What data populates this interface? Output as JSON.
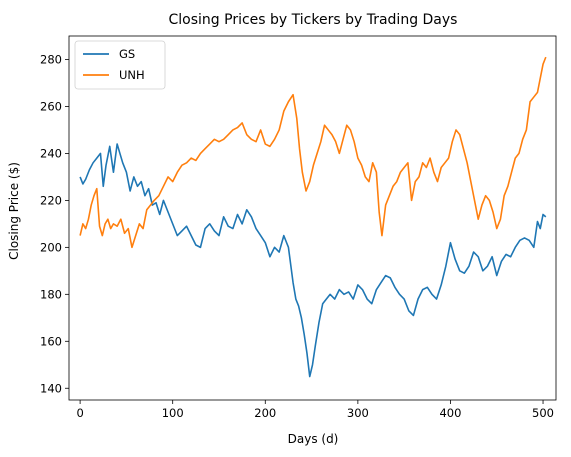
{
  "chart_data": {
    "type": "line",
    "title": "Closing Prices by Tickers by Trading Days",
    "xlabel": "Days (d)",
    "ylabel": "Closing Price ($)",
    "xlim": [
      -12,
      514
    ],
    "ylim": [
      135,
      290
    ],
    "xticks": [
      0,
      100,
      200,
      300,
      400,
      500
    ],
    "yticks": [
      140,
      160,
      180,
      200,
      220,
      240,
      260,
      280
    ],
    "xtick_labels": [
      "0",
      "100",
      "200",
      "300",
      "400",
      "500"
    ],
    "ytick_labels": [
      "140",
      "160",
      "180",
      "200",
      "220",
      "240",
      "260",
      "280"
    ],
    "grid": false,
    "legend": {
      "placement": "top-left"
    },
    "colors": {
      "GS": "#1f77b4",
      "UNH": "#ff7f0e"
    },
    "series": [
      {
        "name": "GS",
        "color": "#1f77b4",
        "x": [
          0,
          3,
          6,
          10,
          14,
          18,
          22,
          25,
          28,
          32,
          36,
          40,
          43,
          46,
          50,
          54,
          58,
          62,
          66,
          70,
          74,
          78,
          82,
          86,
          90,
          95,
          100,
          105,
          110,
          115,
          120,
          125,
          130,
          135,
          140,
          145,
          150,
          155,
          160,
          165,
          170,
          175,
          180,
          185,
          190,
          195,
          200,
          205,
          210,
          215,
          220,
          225,
          230,
          233,
          236,
          239,
          242,
          245,
          248,
          251,
          254,
          258,
          262,
          266,
          270,
          275,
          280,
          285,
          290,
          295,
          300,
          305,
          310,
          315,
          320,
          325,
          330,
          335,
          340,
          345,
          350,
          355,
          360,
          365,
          370,
          375,
          380,
          385,
          390,
          395,
          400,
          405,
          410,
          415,
          420,
          425,
          430,
          435,
          440,
          445,
          450,
          455,
          460,
          465,
          470,
          475,
          480,
          485,
          490,
          494,
          497,
          500,
          503
        ],
        "y": [
          230,
          227,
          229,
          233,
          236,
          238,
          240,
          226,
          235,
          243,
          232,
          244,
          240,
          236,
          232,
          224,
          230,
          226,
          228,
          222,
          225,
          218,
          219,
          214,
          220,
          215,
          210,
          205,
          207,
          209,
          205,
          201,
          200,
          208,
          210,
          207,
          205,
          213,
          209,
          208,
          214,
          210,
          216,
          213,
          208,
          205,
          202,
          196,
          200,
          198,
          205,
          200,
          185,
          178,
          175,
          170,
          163,
          155,
          145,
          150,
          158,
          168,
          176,
          178,
          180,
          178,
          182,
          180,
          181,
          178,
          184,
          182,
          178,
          176,
          182,
          185,
          188,
          187,
          183,
          180,
          178,
          173,
          171,
          178,
          182,
          183,
          180,
          178,
          184,
          192,
          202,
          195,
          190,
          189,
          192,
          198,
          196,
          190,
          192,
          196,
          188,
          194,
          197,
          196,
          200,
          203,
          204,
          203,
          200,
          211,
          208,
          214,
          213
        ]
      },
      {
        "name": "UNH",
        "color": "#ff7f0e",
        "x": [
          0,
          3,
          6,
          9,
          12,
          15,
          18,
          21,
          24,
          27,
          30,
          33,
          36,
          40,
          44,
          48,
          52,
          56,
          60,
          64,
          68,
          72,
          76,
          80,
          85,
          90,
          95,
          100,
          105,
          110,
          115,
          120,
          125,
          130,
          135,
          140,
          145,
          150,
          155,
          160,
          165,
          170,
          175,
          180,
          185,
          190,
          195,
          200,
          205,
          210,
          215,
          220,
          225,
          230,
          234,
          237,
          240,
          244,
          248,
          252,
          256,
          260,
          264,
          268,
          272,
          276,
          280,
          284,
          288,
          292,
          296,
          300,
          304,
          308,
          312,
          316,
          320,
          323,
          326,
          330,
          334,
          338,
          342,
          346,
          350,
          354,
          358,
          362,
          366,
          370,
          374,
          378,
          382,
          386,
          390,
          394,
          398,
          402,
          406,
          410,
          414,
          418,
          422,
          426,
          430,
          434,
          438,
          442,
          446,
          450,
          454,
          458,
          462,
          466,
          470,
          474,
          478,
          482,
          486,
          490,
          494,
          497,
          500,
          503
        ],
        "y": [
          205,
          210,
          208,
          212,
          218,
          222,
          225,
          209,
          205,
          210,
          212,
          208,
          210,
          209,
          212,
          206,
          208,
          200,
          205,
          210,
          208,
          216,
          218,
          220,
          222,
          226,
          230,
          228,
          232,
          235,
          236,
          238,
          237,
          240,
          242,
          244,
          246,
          245,
          246,
          248,
          250,
          251,
          253,
          248,
          246,
          245,
          250,
          244,
          243,
          246,
          250,
          258,
          262,
          265,
          255,
          242,
          232,
          224,
          228,
          235,
          240,
          245,
          252,
          250,
          248,
          245,
          240,
          246,
          252,
          250,
          245,
          238,
          235,
          230,
          228,
          236,
          232,
          215,
          205,
          218,
          222,
          226,
          228,
          232,
          234,
          236,
          220,
          228,
          230,
          236,
          234,
          238,
          232,
          228,
          234,
          236,
          238,
          245,
          250,
          248,
          242,
          236,
          228,
          220,
          212,
          218,
          222,
          220,
          215,
          208,
          212,
          222,
          226,
          232,
          238,
          240,
          246,
          250,
          262,
          264,
          266,
          272,
          278,
          281
        ]
      }
    ]
  }
}
